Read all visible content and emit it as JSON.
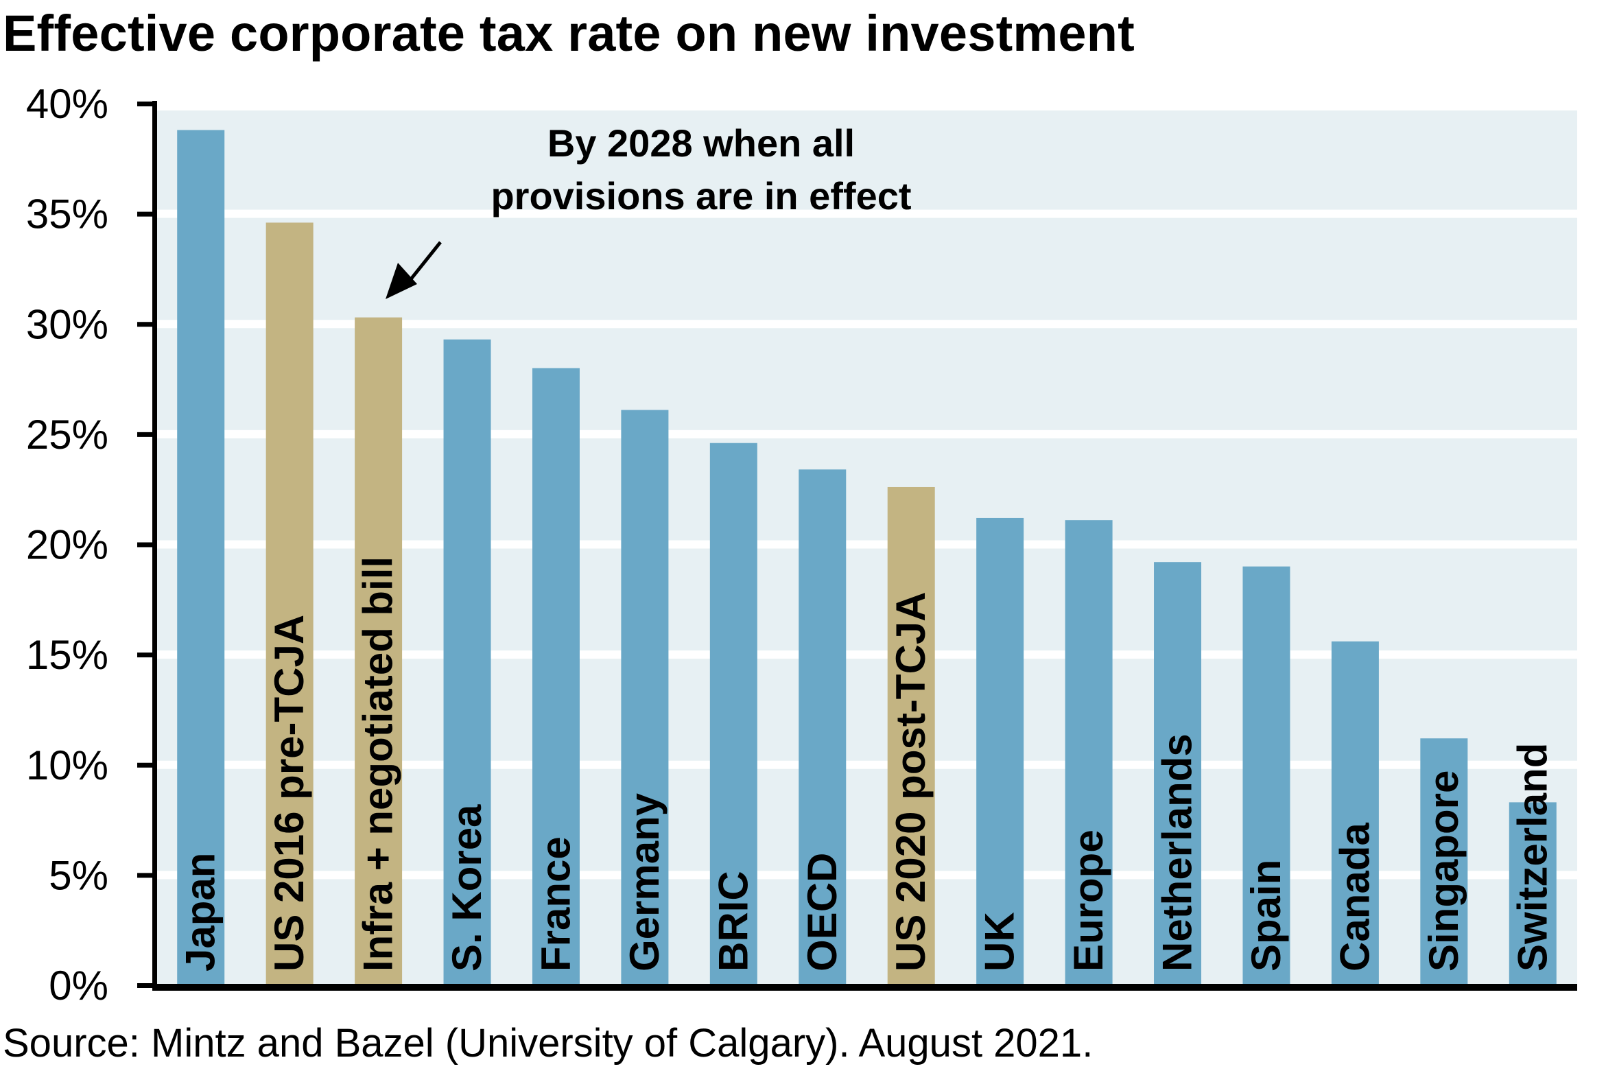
{
  "chart_data": {
    "type": "bar",
    "title": "Effective corporate tax rate on new investment",
    "xlabel": "",
    "ylabel": "",
    "ylim": [
      0,
      40
    ],
    "yticks": [
      0,
      5,
      10,
      15,
      20,
      25,
      30,
      35,
      40
    ],
    "ytick_labels": [
      "0%",
      "5%",
      "10%",
      "15%",
      "20%",
      "25%",
      "30%",
      "35%",
      "40%"
    ],
    "grid": true,
    "categories": [
      "Japan",
      "US 2016 pre-TCJA",
      "Infra + negotiated bill",
      "S. Korea",
      "France",
      "Germany",
      "BRIC",
      "OECD",
      "US 2020 post-TCJA",
      "UK",
      "Europe",
      "Netherlands",
      "Spain",
      "Canada",
      "Singapore",
      "Switzerland"
    ],
    "values": [
      38.8,
      34.6,
      30.3,
      29.3,
      28.0,
      26.1,
      24.6,
      23.4,
      22.6,
      21.2,
      21.1,
      19.2,
      19.0,
      15.6,
      11.2,
      8.3
    ],
    "highlighted": [
      "US 2016 pre-TCJA",
      "Infra + negotiated bill",
      "US 2020 post-TCJA"
    ],
    "colors": {
      "default_bar": "#6aa8c7",
      "highlight_bar": "#c3b482",
      "plot_background": "#e7f0f3",
      "gridline": "#ffffff",
      "axis": "#000000"
    },
    "annotations": [
      {
        "lines": [
          "By 2028 when all",
          "provisions are in effect"
        ],
        "points_to": "Infra + negotiated bill"
      }
    ],
    "source": "Source: Mintz and Bazel (University of Calgary). August 2021."
  }
}
